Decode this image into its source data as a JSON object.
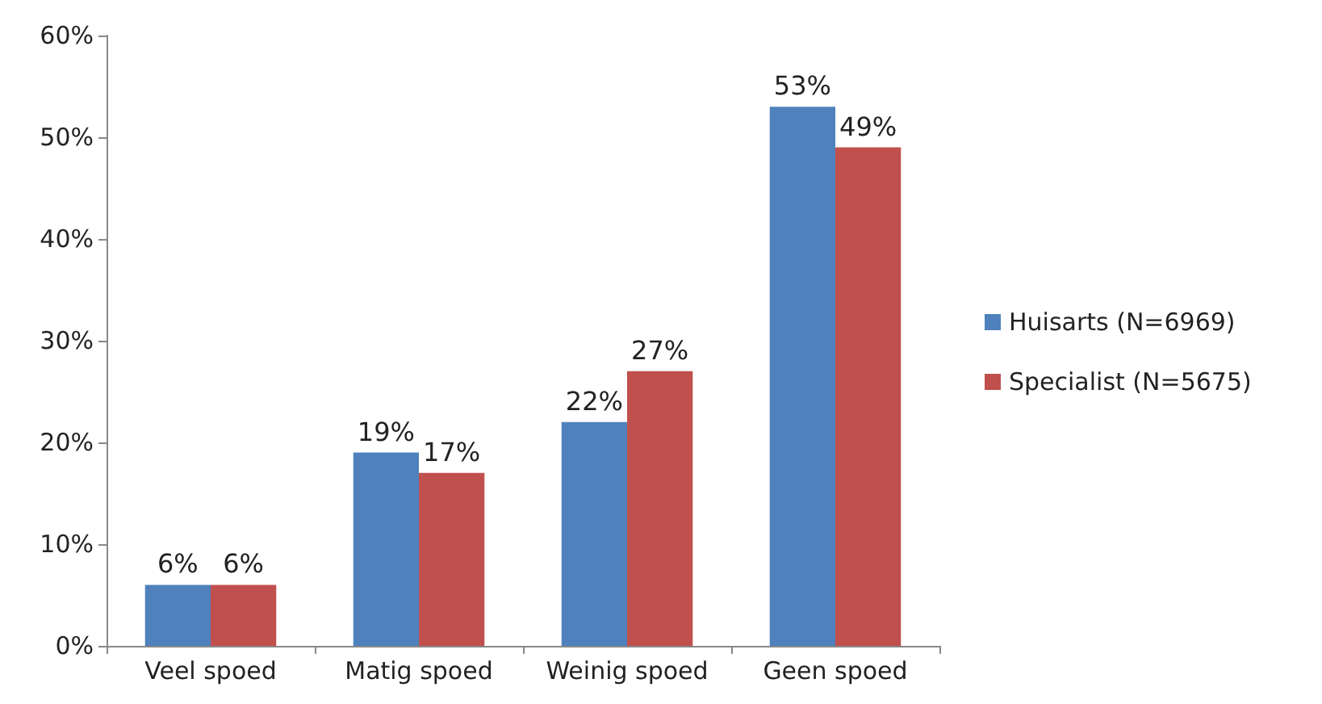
{
  "chart_data": {
    "type": "bar",
    "categories": [
      "Veel spoed",
      "Matig spoed",
      "Weinig spoed",
      "Geen spoed"
    ],
    "series": [
      {
        "name": "Huisarts (N=6969)",
        "color": "#4f81bd",
        "values": [
          6,
          19,
          22,
          53
        ],
        "value_labels": [
          "6%",
          "19%",
          "22%",
          "53%"
        ]
      },
      {
        "name": "Specialist (N=5675)",
        "color": "#c0504d",
        "values": [
          6,
          17,
          27,
          49
        ],
        "value_labels": [
          "6%",
          "17%",
          "27%",
          "49%"
        ]
      }
    ],
    "ylim": [
      0,
      60
    ],
    "yticks": [
      {
        "value": 0,
        "label": "0%"
      },
      {
        "value": 10,
        "label": "10%"
      },
      {
        "value": 20,
        "label": "20%"
      },
      {
        "value": 30,
        "label": "30%"
      },
      {
        "value": 40,
        "label": "40%"
      },
      {
        "value": 50,
        "label": "50%"
      },
      {
        "value": 60,
        "label": "60%"
      }
    ],
    "grid": false,
    "legend": "right"
  }
}
